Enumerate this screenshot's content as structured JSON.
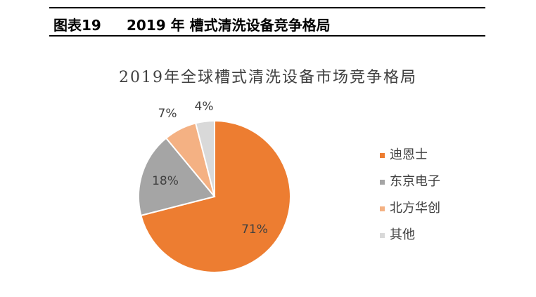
{
  "figure": {
    "number": "图表19",
    "title": "2019 年 槽式清洗设备竞争格局"
  },
  "chart_data": {
    "type": "pie",
    "title": "2019年全球槽式清洗设备市场竞争格局",
    "slices": [
      {
        "name": "迪恩士",
        "value": 71,
        "label": "71%",
        "color": "#ED7D31"
      },
      {
        "name": "东京电子",
        "value": 18,
        "label": "18%",
        "color": "#A5A5A5"
      },
      {
        "name": "北方华创",
        "value": 7,
        "label": "7%",
        "color": "#F4B183"
      },
      {
        "name": "其他",
        "value": 4,
        "label": "4%",
        "color": "#D9D9D9"
      }
    ],
    "legend_position": "right"
  }
}
